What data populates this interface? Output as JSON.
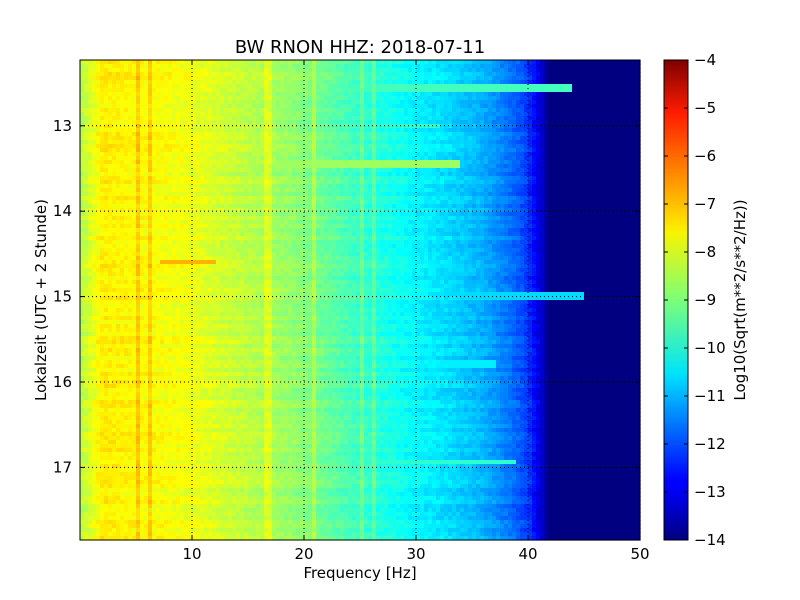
{
  "chart_data": {
    "type": "heatmap",
    "title": "BW RNON HHZ: 2018-07-11",
    "xlabel": "Frequency [Hz]",
    "ylabel": "Lokalzeit (UTC + 2 Stunde)",
    "xlim": [
      0,
      50
    ],
    "ylim": [
      12.23,
      17.85
    ],
    "y_inverted": true,
    "xticks": [
      10,
      20,
      30,
      40,
      50
    ],
    "xtick_labels": [
      "10",
      "20",
      "30",
      "40",
      "50"
    ],
    "yticks": [
      13,
      14,
      15,
      16,
      17
    ],
    "ytick_labels": [
      "13",
      "14",
      "15",
      "16",
      "17"
    ],
    "grid": true,
    "colormap": "jet",
    "colorbar": {
      "label": "Log10(Sqrt(m**2/s**2/Hz))",
      "range": [
        -14,
        -4
      ],
      "ticks": [
        -4,
        -5,
        -6,
        -7,
        -8,
        -9,
        -10,
        -11,
        -12,
        -13,
        -14
      ],
      "tick_labels": [
        "−4",
        "−5",
        "−6",
        "−7",
        "−8",
        "−9",
        "−10",
        "−11",
        "−12",
        "−13",
        "−14"
      ]
    },
    "mean_spectrum": {
      "frequency": [
        0,
        2,
        5,
        10,
        15,
        20,
        25,
        30,
        33,
        36,
        39,
        40,
        41,
        42,
        45,
        50
      ],
      "value": [
        -8.5,
        -7.6,
        -7.7,
        -7.9,
        -8.4,
        -8.9,
        -9.7,
        -10.3,
        -10.6,
        -11.0,
        -11.8,
        -12.2,
        -13.0,
        -14.0,
        -14.0,
        -14.0
      ]
    },
    "persistent_lines_hz": [
      5.3,
      6.2,
      16.8,
      21.0,
      25.2,
      26.2
    ],
    "transient_bands": [
      {
        "time": 12.55,
        "f_start": 18,
        "f_end": 44,
        "value": -9.6
      },
      {
        "time": 13.0,
        "f_start": 20,
        "f_end": 32,
        "value": -9.8
      },
      {
        "time": 13.45,
        "f_start": 0,
        "f_end": 34,
        "value": -8.7
      },
      {
        "time": 14.6,
        "f_start": 7,
        "f_end": 12,
        "value": -7.0
      },
      {
        "time": 15.0,
        "f_start": 0,
        "f_end": 45,
        "value": -10.6
      },
      {
        "time": 15.8,
        "f_start": 30,
        "f_end": 37,
        "value": -10.4
      },
      {
        "time": 16.93,
        "f_start": 15,
        "f_end": 39,
        "value": -9.8
      }
    ]
  }
}
